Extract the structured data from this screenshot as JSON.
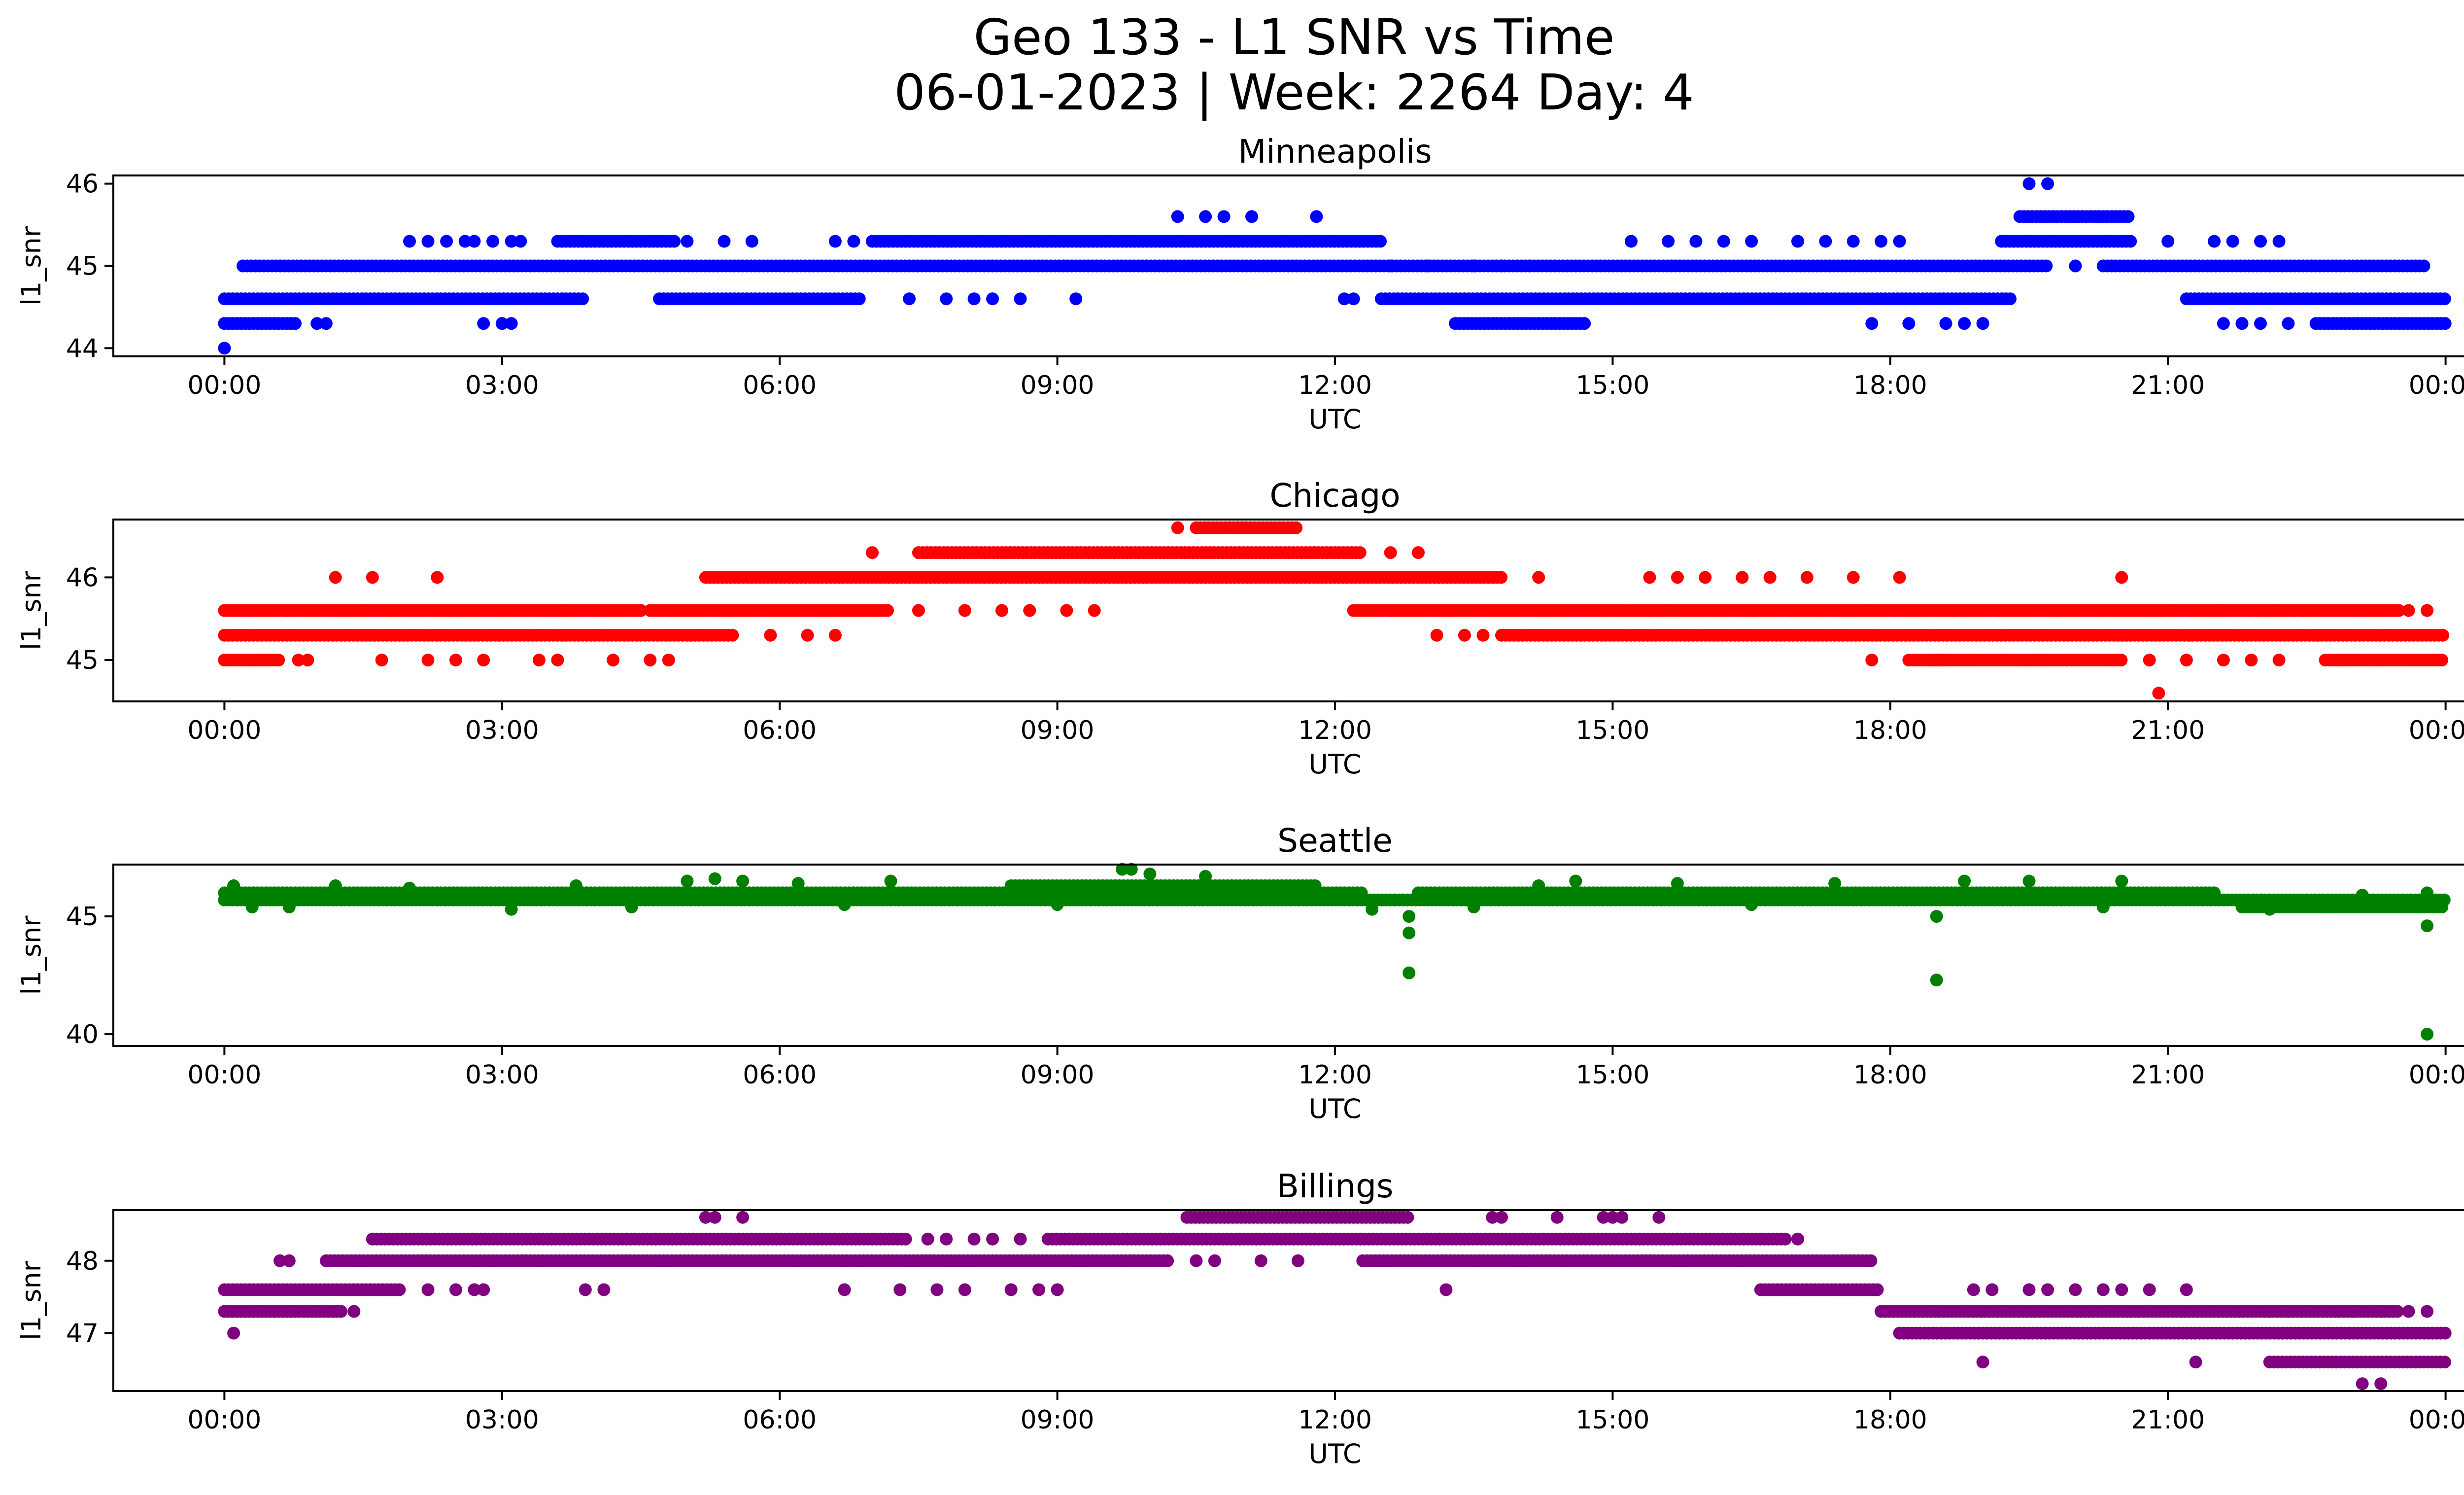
{
  "figure": {
    "title_line1": "Geo 133 - L1 SNR vs Time",
    "title_line2": "06-01-2023 | Week: 2264 Day: 4"
  },
  "x_ticks": [
    "00:00",
    "03:00",
    "06:00",
    "09:00",
    "12:00",
    "15:00",
    "18:00",
    "21:00",
    "00:00"
  ],
  "chart_data": [
    {
      "type": "scatter",
      "title": "Minneapolis",
      "xlabel": "UTC",
      "ylabel": "l1_snr",
      "color": "#0000ff",
      "xlim_hours": [
        -1.2,
        25.2
      ],
      "ylim": [
        43.9,
        46.1
      ],
      "yticks": [
        44,
        45,
        46
      ],
      "x_unit": "hours UTC (06-01-2023 00:00 to 06-02-2023 00:00)",
      "segments": [
        {
          "y": 45.0,
          "x": [
            0.2,
            19.7
          ]
        },
        {
          "y": 45.0,
          "x": [
            20.3,
            23.8
          ]
        },
        {
          "y": 44.6,
          "x": [
            0.0,
            3.9
          ]
        },
        {
          "y": 44.6,
          "x": [
            4.7,
            6.9
          ]
        },
        {
          "y": 44.6,
          "x": [
            12.5,
            19.3
          ]
        },
        {
          "y": 44.6,
          "x": [
            21.2,
            24.0
          ]
        },
        {
          "y": 45.3,
          "x": [
            3.6,
            4.9
          ]
        },
        {
          "y": 45.3,
          "x": [
            7.0,
            12.5
          ]
        },
        {
          "y": 45.3,
          "x": [
            19.2,
            20.6
          ]
        },
        {
          "y": 44.3,
          "x": [
            0.0,
            0.8
          ]
        },
        {
          "y": 44.3,
          "x": [
            13.3,
            14.7
          ]
        },
        {
          "y": 44.3,
          "x": [
            22.6,
            24.0
          ]
        },
        {
          "y": 45.6,
          "x": [
            19.4,
            20.6
          ]
        }
      ],
      "points": [
        {
          "x": 0.0,
          "y": 44.0
        },
        {
          "x": 1.0,
          "y": 44.3
        },
        {
          "x": 1.1,
          "y": 44.3
        },
        {
          "x": 2.8,
          "y": 44.3
        },
        {
          "x": 3.0,
          "y": 44.3
        },
        {
          "x": 3.1,
          "y": 44.3
        },
        {
          "x": 2.0,
          "y": 45.3
        },
        {
          "x": 2.2,
          "y": 45.3
        },
        {
          "x": 2.4,
          "y": 45.3
        },
        {
          "x": 2.6,
          "y": 45.3
        },
        {
          "x": 2.7,
          "y": 45.3
        },
        {
          "x": 2.9,
          "y": 45.3
        },
        {
          "x": 3.1,
          "y": 45.3
        },
        {
          "x": 3.2,
          "y": 45.3
        },
        {
          "x": 5.0,
          "y": 45.3
        },
        {
          "x": 5.4,
          "y": 45.3
        },
        {
          "x": 5.7,
          "y": 45.3
        },
        {
          "x": 7.4,
          "y": 44.6
        },
        {
          "x": 7.8,
          "y": 44.6
        },
        {
          "x": 8.1,
          "y": 44.6
        },
        {
          "x": 8.3,
          "y": 44.6
        },
        {
          "x": 8.6,
          "y": 44.6
        },
        {
          "x": 9.2,
          "y": 44.6
        },
        {
          "x": 6.6,
          "y": 45.3
        },
        {
          "x": 6.8,
          "y": 45.3
        },
        {
          "x": 10.3,
          "y": 45.6
        },
        {
          "x": 10.6,
          "y": 45.6
        },
        {
          "x": 10.8,
          "y": 45.6
        },
        {
          "x": 11.1,
          "y": 45.6
        },
        {
          "x": 11.8,
          "y": 45.6
        },
        {
          "x": 12.1,
          "y": 44.6
        },
        {
          "x": 12.2,
          "y": 44.6
        },
        {
          "x": 12.6,
          "y": 45.0
        },
        {
          "x": 13.0,
          "y": 45.0
        },
        {
          "x": 13.5,
          "y": 45.0
        },
        {
          "x": 13.8,
          "y": 45.0
        },
        {
          "x": 14.1,
          "y": 45.0
        },
        {
          "x": 15.2,
          "y": 45.3
        },
        {
          "x": 15.6,
          "y": 45.3
        },
        {
          "x": 15.9,
          "y": 45.3
        },
        {
          "x": 16.2,
          "y": 45.3
        },
        {
          "x": 16.5,
          "y": 45.3
        },
        {
          "x": 17.0,
          "y": 45.3
        },
        {
          "x": 17.3,
          "y": 45.3
        },
        {
          "x": 17.6,
          "y": 45.3
        },
        {
          "x": 17.9,
          "y": 45.3
        },
        {
          "x": 18.1,
          "y": 45.3
        },
        {
          "x": 17.8,
          "y": 44.3
        },
        {
          "x": 18.2,
          "y": 44.3
        },
        {
          "x": 18.6,
          "y": 44.3
        },
        {
          "x": 18.8,
          "y": 44.3
        },
        {
          "x": 19.0,
          "y": 44.3
        },
        {
          "x": 19.5,
          "y": 46.0
        },
        {
          "x": 19.7,
          "y": 46.0
        },
        {
          "x": 20.0,
          "y": 45.0
        },
        {
          "x": 21.0,
          "y": 45.3
        },
        {
          "x": 21.5,
          "y": 45.3
        },
        {
          "x": 21.7,
          "y": 45.3
        },
        {
          "x": 22.0,
          "y": 45.3
        },
        {
          "x": 22.2,
          "y": 45.3
        },
        {
          "x": 21.6,
          "y": 44.3
        },
        {
          "x": 21.8,
          "y": 44.3
        },
        {
          "x": 22.0,
          "y": 44.3
        },
        {
          "x": 22.3,
          "y": 44.3
        }
      ]
    },
    {
      "type": "scatter",
      "title": "Chicago",
      "xlabel": "UTC",
      "ylabel": "l1_snr",
      "color": "#ff0000",
      "xlim_hours": [
        -1.2,
        25.2
      ],
      "ylim": [
        44.5,
        46.7
      ],
      "yticks": [
        45,
        46
      ],
      "segments": [
        {
          "y": 45.3,
          "x": [
            0.0,
            5.5
          ]
        },
        {
          "y": 45.3,
          "x": [
            13.8,
            24.0
          ]
        },
        {
          "y": 45.6,
          "x": [
            0.0,
            4.5
          ]
        },
        {
          "y": 45.6,
          "x": [
            4.6,
            7.2
          ]
        },
        {
          "y": 45.6,
          "x": [
            12.2,
            23.5
          ]
        },
        {
          "y": 46.0,
          "x": [
            5.2,
            13.8
          ]
        },
        {
          "y": 46.3,
          "x": [
            7.5,
            12.3
          ]
        },
        {
          "y": 46.6,
          "x": [
            10.5,
            11.6
          ]
        },
        {
          "y": 45.0,
          "x": [
            0.0,
            0.6
          ]
        },
        {
          "y": 45.0,
          "x": [
            18.2,
            20.5
          ]
        },
        {
          "y": 45.0,
          "x": [
            22.7,
            24.0
          ]
        }
      ],
      "points": [
        {
          "x": 0.8,
          "y": 45.0
        },
        {
          "x": 0.9,
          "y": 45.0
        },
        {
          "x": 1.7,
          "y": 45.0
        },
        {
          "x": 2.2,
          "y": 45.0
        },
        {
          "x": 2.5,
          "y": 45.0
        },
        {
          "x": 2.8,
          "y": 45.0
        },
        {
          "x": 3.4,
          "y": 45.0
        },
        {
          "x": 3.6,
          "y": 45.0
        },
        {
          "x": 4.2,
          "y": 45.0
        },
        {
          "x": 4.6,
          "y": 45.0
        },
        {
          "x": 4.8,
          "y": 45.0
        },
        {
          "x": 1.2,
          "y": 46.0
        },
        {
          "x": 1.6,
          "y": 46.0
        },
        {
          "x": 2.3,
          "y": 46.0
        },
        {
          "x": 5.9,
          "y": 45.3
        },
        {
          "x": 6.3,
          "y": 45.3
        },
        {
          "x": 6.6,
          "y": 45.3
        },
        {
          "x": 7.5,
          "y": 45.6
        },
        {
          "x": 8.0,
          "y": 45.6
        },
        {
          "x": 8.4,
          "y": 45.6
        },
        {
          "x": 8.7,
          "y": 45.6
        },
        {
          "x": 9.1,
          "y": 45.6
        },
        {
          "x": 9.4,
          "y": 45.6
        },
        {
          "x": 7.0,
          "y": 46.3
        },
        {
          "x": 12.6,
          "y": 46.3
        },
        {
          "x": 12.9,
          "y": 46.3
        },
        {
          "x": 10.3,
          "y": 46.6
        },
        {
          "x": 14.2,
          "y": 46.0
        },
        {
          "x": 15.4,
          "y": 46.0
        },
        {
          "x": 15.7,
          "y": 46.0
        },
        {
          "x": 16.0,
          "y": 46.0
        },
        {
          "x": 16.4,
          "y": 46.0
        },
        {
          "x": 16.7,
          "y": 46.0
        },
        {
          "x": 17.1,
          "y": 46.0
        },
        {
          "x": 17.6,
          "y": 46.0
        },
        {
          "x": 18.1,
          "y": 46.0
        },
        {
          "x": 20.5,
          "y": 46.0
        },
        {
          "x": 13.1,
          "y": 45.3
        },
        {
          "x": 13.4,
          "y": 45.3
        },
        {
          "x": 13.6,
          "y": 45.3
        },
        {
          "x": 17.8,
          "y": 45.0
        },
        {
          "x": 20.8,
          "y": 45.0
        },
        {
          "x": 21.2,
          "y": 45.0
        },
        {
          "x": 21.6,
          "y": 45.0
        },
        {
          "x": 21.9,
          "y": 45.0
        },
        {
          "x": 22.2,
          "y": 45.0
        },
        {
          "x": 23.6,
          "y": 45.6
        },
        {
          "x": 23.8,
          "y": 45.6
        },
        {
          "x": 20.9,
          "y": 44.6
        }
      ]
    },
    {
      "type": "scatter",
      "title": "Seattle",
      "xlabel": "UTC",
      "ylabel": "l1_snr",
      "color": "#008000",
      "xlim_hours": [
        -1.2,
        25.2
      ],
      "ylim": [
        39.5,
        47.2
      ],
      "yticks": [
        40,
        45
      ],
      "segments": [
        {
          "y": 45.7,
          "x": [
            0.0,
            24.0
          ]
        },
        {
          "y": 46.0,
          "x": [
            0.0,
            12.3
          ]
        },
        {
          "y": 46.0,
          "x": [
            12.9,
            21.5
          ]
        },
        {
          "y": 46.3,
          "x": [
            8.5,
            11.8
          ]
        },
        {
          "y": 45.4,
          "x": [
            21.8,
            24.0
          ]
        }
      ],
      "points": [
        {
          "x": 0.1,
          "y": 46.3
        },
        {
          "x": 0.3,
          "y": 45.4
        },
        {
          "x": 0.7,
          "y": 45.4
        },
        {
          "x": 1.2,
          "y": 46.3
        },
        {
          "x": 2.0,
          "y": 46.2
        },
        {
          "x": 3.1,
          "y": 45.3
        },
        {
          "x": 3.8,
          "y": 46.3
        },
        {
          "x": 4.4,
          "y": 45.4
        },
        {
          "x": 5.0,
          "y": 46.5
        },
        {
          "x": 5.3,
          "y": 46.6
        },
        {
          "x": 5.6,
          "y": 46.5
        },
        {
          "x": 6.2,
          "y": 46.4
        },
        {
          "x": 6.7,
          "y": 45.5
        },
        {
          "x": 7.2,
          "y": 46.5
        },
        {
          "x": 9.0,
          "y": 45.5
        },
        {
          "x": 9.7,
          "y": 47.0
        },
        {
          "x": 9.8,
          "y": 47.0
        },
        {
          "x": 10.0,
          "y": 46.8
        },
        {
          "x": 10.6,
          "y": 46.7
        },
        {
          "x": 12.4,
          "y": 45.3
        },
        {
          "x": 12.8,
          "y": 45.0
        },
        {
          "x": 12.8,
          "y": 44.3
        },
        {
          "x": 12.8,
          "y": 42.6
        },
        {
          "x": 13.5,
          "y": 45.4
        },
        {
          "x": 14.2,
          "y": 46.3
        },
        {
          "x": 14.6,
          "y": 46.5
        },
        {
          "x": 15.7,
          "y": 46.4
        },
        {
          "x": 16.5,
          "y": 45.5
        },
        {
          "x": 17.4,
          "y": 46.4
        },
        {
          "x": 18.5,
          "y": 45.0
        },
        {
          "x": 18.5,
          "y": 42.3
        },
        {
          "x": 18.8,
          "y": 46.5
        },
        {
          "x": 19.5,
          "y": 46.5
        },
        {
          "x": 20.3,
          "y": 45.4
        },
        {
          "x": 20.5,
          "y": 46.5
        },
        {
          "x": 21.5,
          "y": 46.0
        },
        {
          "x": 22.1,
          "y": 45.3
        },
        {
          "x": 23.1,
          "y": 45.9
        },
        {
          "x": 23.8,
          "y": 46.0
        },
        {
          "x": 23.8,
          "y": 44.6
        },
        {
          "x": 23.8,
          "y": 40.0
        }
      ]
    },
    {
      "type": "scatter",
      "title": "Billings",
      "xlabel": "UTC",
      "ylabel": "l1_snr",
      "color": "#800080",
      "xlim_hours": [
        -1.2,
        25.2
      ],
      "ylim": [
        46.2,
        48.7
      ],
      "yticks": [
        47,
        48
      ],
      "segments": [
        {
          "y": 48.0,
          "x": [
            1.1,
            10.2
          ]
        },
        {
          "y": 48.0,
          "x": [
            12.3,
            17.8
          ]
        },
        {
          "y": 48.3,
          "x": [
            1.6,
            7.4
          ]
        },
        {
          "y": 48.3,
          "x": [
            8.9,
            16.9
          ]
        },
        {
          "y": 48.6,
          "x": [
            10.4,
            12.8
          ]
        },
        {
          "y": 47.6,
          "x": [
            0.0,
            1.9
          ]
        },
        {
          "y": 47.6,
          "x": [
            16.6,
            17.9
          ]
        },
        {
          "y": 47.3,
          "x": [
            0.0,
            1.3
          ]
        },
        {
          "y": 47.3,
          "x": [
            17.9,
            23.5
          ]
        },
        {
          "y": 47.0,
          "x": [
            18.1,
            24.0
          ]
        },
        {
          "y": 46.6,
          "x": [
            22.1,
            24.0
          ]
        }
      ],
      "points": [
        {
          "x": 0.1,
          "y": 47.0
        },
        {
          "x": 0.6,
          "y": 48.0
        },
        {
          "x": 0.7,
          "y": 48.0
        },
        {
          "x": 1.4,
          "y": 47.3
        },
        {
          "x": 2.2,
          "y": 47.6
        },
        {
          "x": 2.5,
          "y": 47.6
        },
        {
          "x": 2.7,
          "y": 47.6
        },
        {
          "x": 2.8,
          "y": 47.6
        },
        {
          "x": 3.9,
          "y": 47.6
        },
        {
          "x": 4.1,
          "y": 47.6
        },
        {
          "x": 5.2,
          "y": 48.6
        },
        {
          "x": 5.3,
          "y": 48.6
        },
        {
          "x": 5.6,
          "y": 48.6
        },
        {
          "x": 6.7,
          "y": 47.6
        },
        {
          "x": 7.3,
          "y": 47.6
        },
        {
          "x": 7.7,
          "y": 47.6
        },
        {
          "x": 8.0,
          "y": 47.6
        },
        {
          "x": 8.5,
          "y": 47.6
        },
        {
          "x": 8.8,
          "y": 47.6
        },
        {
          "x": 9.0,
          "y": 47.6
        },
        {
          "x": 7.6,
          "y": 48.3
        },
        {
          "x": 7.8,
          "y": 48.3
        },
        {
          "x": 8.1,
          "y": 48.3
        },
        {
          "x": 8.3,
          "y": 48.3
        },
        {
          "x": 8.6,
          "y": 48.3
        },
        {
          "x": 10.5,
          "y": 48.0
        },
        {
          "x": 10.7,
          "y": 48.0
        },
        {
          "x": 11.2,
          "y": 48.0
        },
        {
          "x": 11.6,
          "y": 48.0
        },
        {
          "x": 13.2,
          "y": 47.6
        },
        {
          "x": 13.7,
          "y": 48.6
        },
        {
          "x": 13.8,
          "y": 48.6
        },
        {
          "x": 14.4,
          "y": 48.6
        },
        {
          "x": 14.9,
          "y": 48.6
        },
        {
          "x": 15.0,
          "y": 48.6
        },
        {
          "x": 15.1,
          "y": 48.6
        },
        {
          "x": 15.5,
          "y": 48.6
        },
        {
          "x": 17.0,
          "y": 48.3
        },
        {
          "x": 18.9,
          "y": 47.6
        },
        {
          "x": 19.1,
          "y": 47.6
        },
        {
          "x": 19.5,
          "y": 47.6
        },
        {
          "x": 19.7,
          "y": 47.6
        },
        {
          "x": 20.0,
          "y": 47.6
        },
        {
          "x": 20.3,
          "y": 47.6
        },
        {
          "x": 20.5,
          "y": 47.6
        },
        {
          "x": 20.8,
          "y": 47.6
        },
        {
          "x": 21.2,
          "y": 47.6
        },
        {
          "x": 19.0,
          "y": 46.6
        },
        {
          "x": 21.3,
          "y": 46.6
        },
        {
          "x": 22.1,
          "y": 47.3
        },
        {
          "x": 22.3,
          "y": 47.3
        },
        {
          "x": 23.0,
          "y": 47.3
        },
        {
          "x": 23.3,
          "y": 47.3
        },
        {
          "x": 23.6,
          "y": 47.3
        },
        {
          "x": 23.8,
          "y": 47.3
        },
        {
          "x": 23.1,
          "y": 46.3
        },
        {
          "x": 23.3,
          "y": 46.3
        }
      ]
    }
  ]
}
